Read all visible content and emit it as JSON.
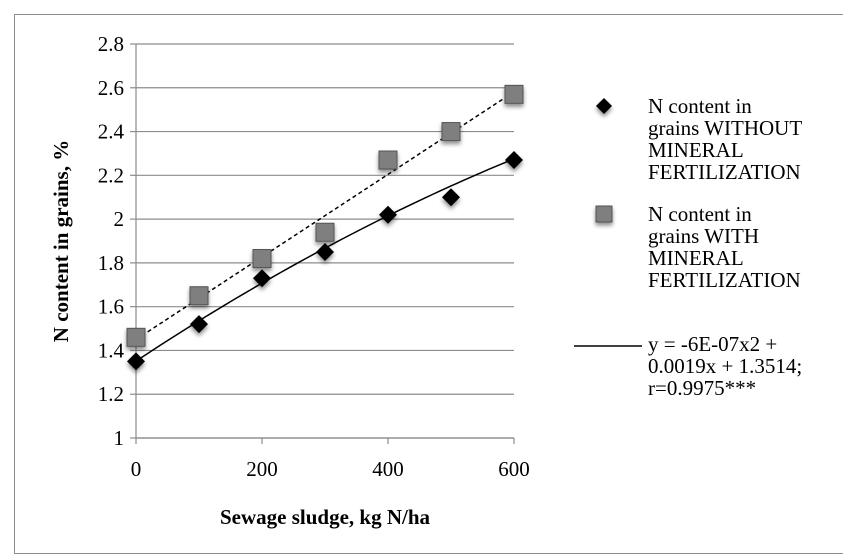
{
  "chart_data": {
    "type": "scatter",
    "title": "",
    "xlabel": "Sewage sludge, kg N/ha",
    "ylabel": "N content in grains, %",
    "xlim": [
      0,
      600
    ],
    "ylim": [
      1,
      2.8
    ],
    "x_ticks": [
      "0",
      "200",
      "400",
      "600"
    ],
    "y_ticks": [
      "1",
      "1.2",
      "1.4",
      "1.6",
      "1.8",
      "2",
      "2.2",
      "2.4",
      "2.6",
      "2.8"
    ],
    "grid": "horizontal",
    "legend_position": "right",
    "x": [
      0,
      100,
      200,
      300,
      400,
      500,
      600
    ],
    "series": [
      {
        "name": "N content in grains WITHOUT MINERAL FERTILIZATION",
        "marker": "diamond",
        "color": "#000000",
        "values": [
          1.35,
          1.52,
          1.73,
          1.85,
          2.02,
          2.1,
          2.27
        ],
        "trendline": {
          "style": "solid",
          "type": "polynomial",
          "coefficients": [
            -6e-07,
            0.0019,
            1.3514
          ]
        }
      },
      {
        "name": "N content in grains WITH MINERAL FERTILIZATION",
        "marker": "square",
        "color": "#7f7f7f",
        "values": [
          1.46,
          1.65,
          1.82,
          1.94,
          2.27,
          2.4,
          2.57
        ],
        "trendline": {
          "style": "dashed",
          "type": "linear"
        }
      }
    ],
    "legend": [
      {
        "marker": "diamond",
        "lines": [
          "N content in",
          "grains WITHOUT",
          "MINERAL",
          "FERTILIZATION"
        ]
      },
      {
        "marker": "square",
        "lines": [
          "N content in",
          "grains WITH",
          "MINERAL",
          "FERTILIZATION"
        ]
      },
      {
        "marker": "line",
        "lines": [
          "y = -6E-07x2 +",
          "0.0019x + 1.3514;",
          "r=0.9975***"
        ]
      }
    ]
  }
}
